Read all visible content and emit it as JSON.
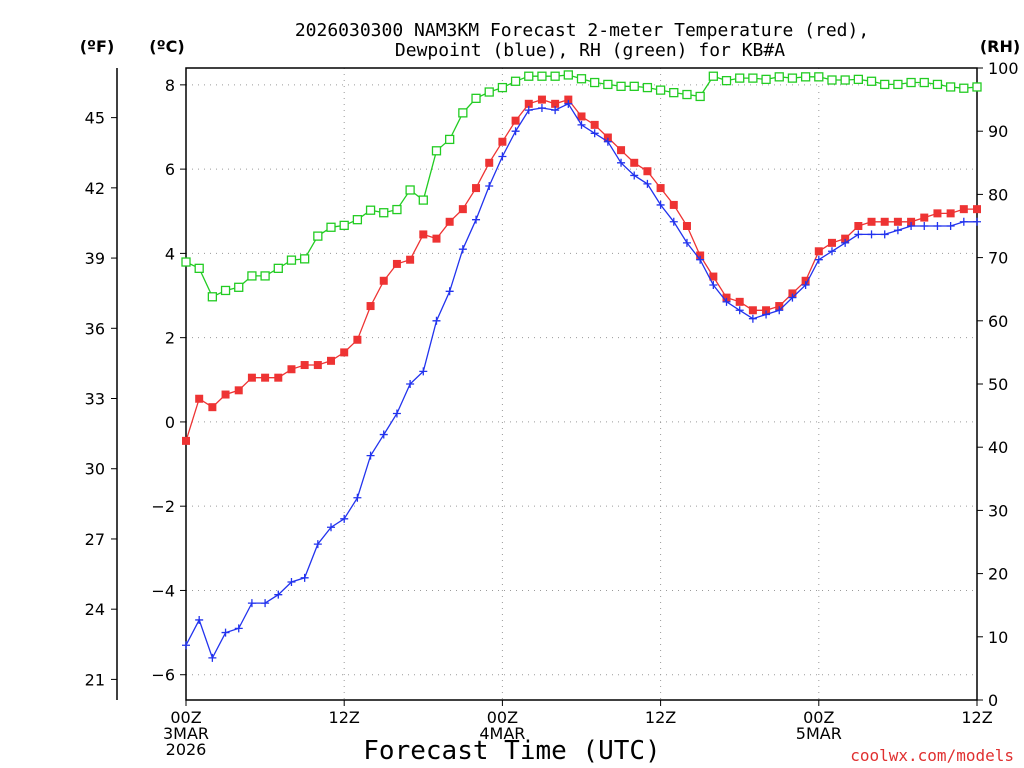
{
  "title_line1": "2026030300 NAM3KM Forecast 2-meter Temperature (red),",
  "title_line2": "Dewpoint (blue), RH (green) for KB#A",
  "units": {
    "fahrenheit": "(ºF)",
    "celsius": "(ºC)",
    "rh": "(RH)"
  },
  "credit": "coolwx.com/models",
  "colors": {
    "temperature": "#ee3333",
    "dewpoint": "#2233ee",
    "rh": "#22cc22",
    "credit": "#e03030"
  },
  "chart_data": {
    "type": "line",
    "title": "2026030300 NAM3KM Forecast 2-meter Temperature (red), Dewpoint (blue), RH (green) for KB#A",
    "xlabel": "Forecast Time (UTC)",
    "x_unit": "forecast hour",
    "xlim": [
      0,
      60
    ],
    "x_ticks": [
      {
        "hour": 0,
        "lines": [
          "00Z",
          "3MAR",
          "2026"
        ]
      },
      {
        "hour": 12,
        "lines": [
          "12Z"
        ]
      },
      {
        "hour": 24,
        "lines": [
          "00Z",
          "4MAR"
        ]
      },
      {
        "hour": 36,
        "lines": [
          "12Z"
        ]
      },
      {
        "hour": 48,
        "lines": [
          "00Z",
          "5MAR"
        ]
      },
      {
        "hour": 60,
        "lines": [
          "12Z"
        ]
      }
    ],
    "y_celsius": {
      "label": "(ºC)",
      "lim": [
        -6.6,
        8.4
      ],
      "ticks": [
        -6,
        -4,
        -2,
        0,
        2,
        4,
        6,
        8
      ]
    },
    "y_fahrenheit": {
      "label": "(ºF)",
      "ticks": [
        21,
        24,
        27,
        30,
        33,
        36,
        39,
        42,
        45
      ]
    },
    "y_rh": {
      "label": "(RH)",
      "lim": [
        0,
        100
      ],
      "ticks": [
        0,
        10,
        20,
        30,
        40,
        50,
        60,
        70,
        80,
        90,
        100
      ]
    },
    "x": [
      0,
      1,
      2,
      3,
      4,
      5,
      6,
      7,
      8,
      9,
      10,
      11,
      12,
      13,
      14,
      15,
      16,
      17,
      18,
      19,
      20,
      21,
      22,
      23,
      24,
      25,
      26,
      27,
      28,
      29,
      30,
      31,
      32,
      33,
      34,
      35,
      36,
      37,
      38,
      39,
      40,
      41,
      42,
      43,
      44,
      45,
      46,
      47,
      48,
      49,
      50,
      51,
      52,
      53,
      54,
      55,
      56,
      57,
      58,
      59,
      60
    ],
    "series": [
      {
        "name": "Temperature",
        "axis": "celsius",
        "color": "#ee3333",
        "marker": "filled-square",
        "values": [
          -0.45,
          0.55,
          0.35,
          0.65,
          0.75,
          1.05,
          1.05,
          1.05,
          1.25,
          1.35,
          1.35,
          1.45,
          1.65,
          1.95,
          2.75,
          3.35,
          3.75,
          3.85,
          4.45,
          4.35,
          4.75,
          5.05,
          5.55,
          6.15,
          6.65,
          7.15,
          7.55,
          7.65,
          7.55,
          7.65,
          7.25,
          7.05,
          6.75,
          6.45,
          6.15,
          5.95,
          5.55,
          5.15,
          4.65,
          3.95,
          3.45,
          2.95,
          2.85,
          2.65,
          2.65,
          2.75,
          3.05,
          3.35,
          4.05,
          4.25,
          4.35,
          4.65,
          4.75,
          4.75,
          4.75,
          4.75,
          4.85,
          4.95,
          4.95,
          5.05,
          5.05
        ]
      },
      {
        "name": "Dewpoint",
        "axis": "celsius",
        "color": "#2233ee",
        "marker": "plus",
        "values": [
          -5.3,
          -4.7,
          -5.6,
          -5.0,
          -4.9,
          -4.3,
          -4.3,
          -4.1,
          -3.8,
          -3.7,
          -2.9,
          -2.5,
          -2.3,
          -1.8,
          -0.8,
          -0.3,
          0.2,
          0.9,
          1.2,
          2.4,
          3.1,
          4.1,
          4.8,
          5.6,
          6.3,
          6.9,
          7.4,
          7.45,
          7.4,
          7.55,
          7.05,
          6.85,
          6.65,
          6.15,
          5.85,
          5.65,
          5.15,
          4.75,
          4.25,
          3.85,
          3.25,
          2.85,
          2.65,
          2.45,
          2.55,
          2.65,
          2.95,
          3.25,
          3.85,
          4.05,
          4.25,
          4.45,
          4.45,
          4.45,
          4.55,
          4.65,
          4.65,
          4.65,
          4.65,
          4.75,
          4.75
        ]
      },
      {
        "name": "RH",
        "axis": "rh",
        "color": "#22cc22",
        "marker": "open-square",
        "values": [
          69.3,
          68.3,
          63.8,
          64.8,
          65.3,
          67.1,
          67.1,
          68.3,
          69.6,
          69.8,
          73.4,
          74.8,
          75.1,
          76.0,
          77.5,
          77.1,
          77.6,
          80.7,
          79.1,
          86.9,
          88.7,
          92.9,
          95.2,
          96.2,
          96.9,
          97.9,
          98.7,
          98.7,
          98.7,
          98.9,
          98.3,
          97.7,
          97.4,
          97.1,
          97.1,
          96.9,
          96.5,
          96.1,
          95.8,
          95.5,
          98.7,
          98.0,
          98.4,
          98.4,
          98.2,
          98.6,
          98.4,
          98.6,
          98.6,
          98.1,
          98.1,
          98.2,
          97.9,
          97.4,
          97.4,
          97.7,
          97.7,
          97.4,
          97.0,
          96.8,
          97.0
        ]
      }
    ]
  }
}
